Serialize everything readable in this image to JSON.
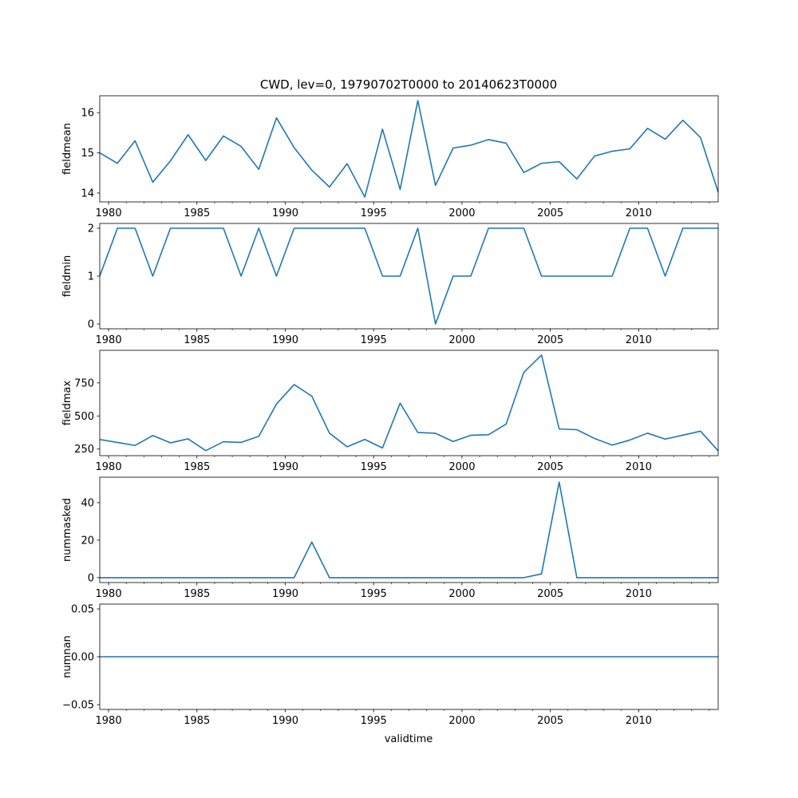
{
  "figure": {
    "title": "CWD, lev=0, 19790702T0000 to 20140623T0000",
    "xlabel": "validtime",
    "line_color": "#1f77b4"
  },
  "chart_data": [
    {
      "type": "line",
      "ylabel": "fieldmean",
      "xlim": [
        1979.5,
        2014.5
      ],
      "ylim": [
        13.78,
        16.42
      ],
      "x_ticks": [
        1980,
        1985,
        1990,
        1995,
        2000,
        2005,
        2010
      ],
      "y_ticks": [
        14,
        15,
        16
      ],
      "y_tick_labels": [
        "14",
        "15",
        "16"
      ],
      "x": [
        1979.5,
        1980.5,
        1981.5,
        1982.5,
        1983.5,
        1984.5,
        1985.5,
        1986.5,
        1987.5,
        1988.5,
        1989.5,
        1990.5,
        1991.5,
        1992.5,
        1993.5,
        1994.5,
        1995.5,
        1996.5,
        1997.5,
        1998.5,
        1999.5,
        2000.5,
        2001.5,
        2002.5,
        2003.5,
        2004.5,
        2005.5,
        2006.5,
        2007.5,
        2008.5,
        2009.5,
        2010.5,
        2011.5,
        2012.5,
        2013.5,
        2014.5
      ],
      "values": [
        15.0,
        14.74,
        15.3,
        14.27,
        14.8,
        15.45,
        14.81,
        15.42,
        15.16,
        14.59,
        15.87,
        15.13,
        14.57,
        14.15,
        14.73,
        13.9,
        15.59,
        14.09,
        16.3,
        14.19,
        15.12,
        15.19,
        15.33,
        15.24,
        14.51,
        14.74,
        14.78,
        14.35,
        14.92,
        15.04,
        15.1,
        15.61,
        15.34,
        15.81,
        15.38,
        14.02
      ]
    },
    {
      "type": "line",
      "ylabel": "fieldmin",
      "xlim": [
        1979.5,
        2014.5
      ],
      "ylim": [
        -0.1,
        2.1
      ],
      "x_ticks": [
        1980,
        1985,
        1990,
        1995,
        2000,
        2005,
        2010
      ],
      "y_ticks": [
        0,
        1,
        2
      ],
      "y_tick_labels": [
        "0",
        "1",
        "2"
      ],
      "x": [
        1979.5,
        1980.5,
        1981.5,
        1982.5,
        1983.5,
        1984.5,
        1985.5,
        1986.5,
        1987.5,
        1988.5,
        1989.5,
        1990.5,
        1991.5,
        1992.5,
        1993.5,
        1994.5,
        1995.5,
        1996.5,
        1997.5,
        1998.5,
        1999.5,
        2000.5,
        2001.5,
        2002.5,
        2003.5,
        2004.5,
        2005.5,
        2006.5,
        2007.5,
        2008.5,
        2009.5,
        2010.5,
        2011.5,
        2012.5,
        2013.5,
        2014.5
      ],
      "values": [
        1,
        2,
        2,
        1,
        2,
        2,
        2,
        2,
        1,
        2,
        1,
        2,
        2,
        2,
        2,
        2,
        1,
        1,
        2,
        0,
        1,
        1,
        2,
        2,
        2,
        1,
        1,
        1,
        1,
        1,
        2,
        2,
        1,
        2,
        2,
        2
      ]
    },
    {
      "type": "line",
      "ylabel": "fieldmax",
      "xlim": [
        1979.5,
        2014.5
      ],
      "ylim": [
        200,
        996
      ],
      "x_ticks": [
        1980,
        1985,
        1990,
        1995,
        2000,
        2005,
        2010
      ],
      "y_ticks": [
        250,
        500,
        750
      ],
      "y_tick_labels": [
        "250",
        "500",
        "750"
      ],
      "x": [
        1979.5,
        1980.5,
        1981.5,
        1982.5,
        1983.5,
        1984.5,
        1985.5,
        1986.5,
        1987.5,
        1988.5,
        1989.5,
        1990.5,
        1991.5,
        1992.5,
        1993.5,
        1994.5,
        1995.5,
        1996.5,
        1997.5,
        1998.5,
        1999.5,
        2000.5,
        2001.5,
        2002.5,
        2003.5,
        2004.5,
        2005.5,
        2006.5,
        2007.5,
        2008.5,
        2009.5,
        2010.5,
        2011.5,
        2012.5,
        2013.5,
        2014.5
      ],
      "values": [
        322,
        300,
        277,
        352,
        297,
        327,
        238,
        305,
        300,
        346,
        590,
        737,
        650,
        370,
        267,
        323,
        258,
        597,
        375,
        369,
        307,
        354,
        358,
        439,
        830,
        960,
        402,
        396,
        330,
        280,
        318,
        370,
        325,
        355,
        385,
        236
      ]
    },
    {
      "type": "line",
      "ylabel": "nummasked",
      "xlim": [
        1979.5,
        2014.5
      ],
      "ylim": [
        -2.6,
        53.6
      ],
      "x_ticks": [
        1980,
        1985,
        1990,
        1995,
        2000,
        2005,
        2010
      ],
      "y_ticks": [
        0,
        20,
        40
      ],
      "y_tick_labels": [
        "0",
        "20",
        "40"
      ],
      "x": [
        1979.5,
        1980.5,
        1981.5,
        1982.5,
        1983.5,
        1984.5,
        1985.5,
        1986.5,
        1987.5,
        1988.5,
        1989.5,
        1990.5,
        1991.5,
        1992.5,
        1993.5,
        1994.5,
        1995.5,
        1996.5,
        1997.5,
        1998.5,
        1999.5,
        2000.5,
        2001.5,
        2002.5,
        2003.5,
        2004.5,
        2005.5,
        2006.5,
        2007.5,
        2008.5,
        2009.5,
        2010.5,
        2011.5,
        2012.5,
        2013.5,
        2014.5
      ],
      "values": [
        0,
        0,
        0,
        0,
        0,
        0,
        0,
        0,
        0,
        0,
        0,
        0,
        19,
        0,
        0,
        0,
        0,
        0,
        0,
        0,
        0,
        0,
        0,
        0,
        0,
        2,
        51,
        0,
        0,
        0,
        0,
        0,
        0,
        0,
        0,
        0
      ]
    },
    {
      "type": "line",
      "ylabel": "numnan",
      "xlim": [
        1979.5,
        2014.5
      ],
      "ylim": [
        -0.055,
        0.055
      ],
      "x_ticks": [
        1980,
        1985,
        1990,
        1995,
        2000,
        2005,
        2010
      ],
      "y_ticks": [
        -0.05,
        0.0,
        0.05
      ],
      "y_tick_labels": [
        "−0.05",
        "0.00",
        "0.05"
      ],
      "x": [
        1979.5,
        1980.5,
        1981.5,
        1982.5,
        1983.5,
        1984.5,
        1985.5,
        1986.5,
        1987.5,
        1988.5,
        1989.5,
        1990.5,
        1991.5,
        1992.5,
        1993.5,
        1994.5,
        1995.5,
        1996.5,
        1997.5,
        1998.5,
        1999.5,
        2000.5,
        2001.5,
        2002.5,
        2003.5,
        2004.5,
        2005.5,
        2006.5,
        2007.5,
        2008.5,
        2009.5,
        2010.5,
        2011.5,
        2012.5,
        2013.5,
        2014.5
      ],
      "values": [
        0,
        0,
        0,
        0,
        0,
        0,
        0,
        0,
        0,
        0,
        0,
        0,
        0,
        0,
        0,
        0,
        0,
        0,
        0,
        0,
        0,
        0,
        0,
        0,
        0,
        0,
        0,
        0,
        0,
        0,
        0,
        0,
        0,
        0,
        0,
        0
      ]
    }
  ]
}
